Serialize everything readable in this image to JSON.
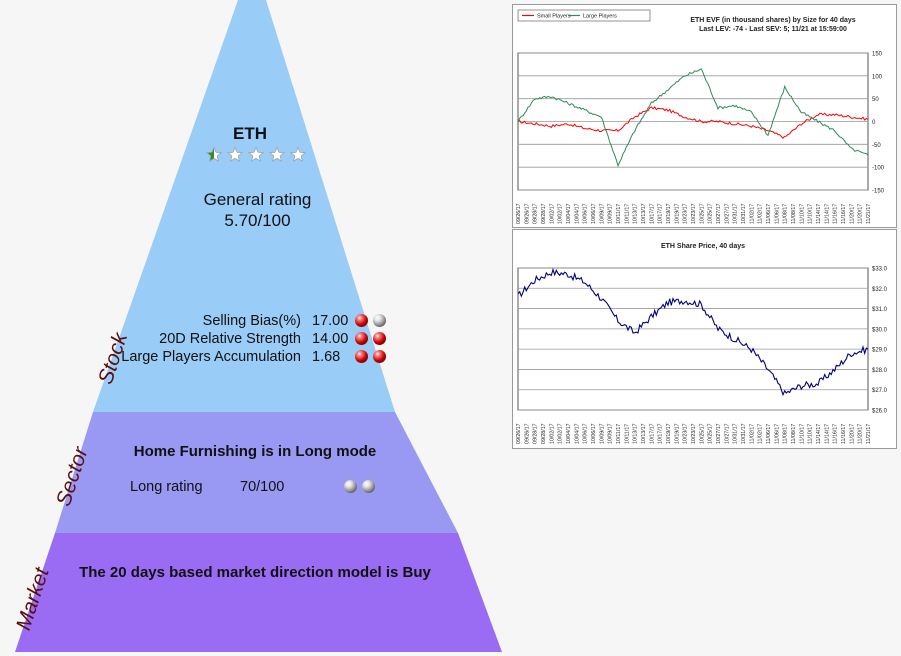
{
  "stock": {
    "ticker": "ETH",
    "star_rating": 0.5,
    "stars_total": 5,
    "general_rating_label": "General rating",
    "general_rating_value": "5.70/100",
    "side_label": "Stock",
    "metrics": [
      {
        "label": "Selling Bias(%)",
        "value": "17.00",
        "balls": [
          "red",
          "gray"
        ]
      },
      {
        "label": "20D Relative Strength",
        "value": "14.00",
        "balls": [
          "red",
          "red"
        ]
      },
      {
        "label": "Large Players Accumulation",
        "value": "1.68",
        "balls": [
          "red",
          "red"
        ]
      }
    ]
  },
  "sector": {
    "side_label": "Sector",
    "title": "Home Furnishing is in Long mode",
    "rating_label": "Long rating",
    "rating_value": "70/100",
    "balls": [
      "gray",
      "gray"
    ]
  },
  "market": {
    "side_label": "Market",
    "text": "The 20 days based market direction model is Buy"
  },
  "colors": {
    "stock_tier": "#99ccf7",
    "sector_tier": "#9999f3",
    "market_tier": "#9a6cf4",
    "side_label": "#5a0f0f",
    "small_players": "#ff0000",
    "large_players": "#2e8b57",
    "price_line": "#000080"
  },
  "chart_data": [
    {
      "type": "line",
      "title": "ETH EVF (in thousand shares) by Size for 40 days",
      "subtitle": "Last LEV: -74 - Last SEV: 5; 11/21 at 15:59:00",
      "legend": [
        "Small Players",
        "Large Players"
      ],
      "legend_position": "top-left",
      "ylim": [
        -150,
        150
      ],
      "yticks": [
        150,
        100,
        50,
        0,
        -50,
        -100,
        -150
      ],
      "grid": true,
      "x": [
        "09/26/17",
        "09/28/17",
        "10/02/17",
        "10/04/17",
        "10/06/17",
        "10/09/17",
        "10/11/17",
        "10/13/17",
        "10/17/17",
        "10/19/17",
        "10/23/17",
        "10/25/17",
        "10/27/17",
        "10/31/17",
        "11/02/17",
        "11/06/17",
        "11/08/17",
        "11/10/17",
        "11/14/17",
        "11/16/17",
        "11/20/17",
        "11/21/17"
      ],
      "series": [
        {
          "name": "Small Players",
          "color": "#ff0000",
          "values": [
            0,
            -5,
            -10,
            -5,
            -15,
            -20,
            -20,
            10,
            30,
            25,
            10,
            0,
            0,
            -5,
            -10,
            -20,
            -35,
            -5,
            15,
            15,
            10,
            5
          ]
        },
        {
          "name": "Large Players",
          "color": "#2e8b57",
          "values": [
            0,
            50,
            55,
            40,
            25,
            10,
            -95,
            -20,
            40,
            70,
            100,
            115,
            30,
            35,
            20,
            -30,
            75,
            20,
            0,
            -20,
            -60,
            -74
          ]
        }
      ]
    },
    {
      "type": "line",
      "title": "ETH Share Price, 40 days",
      "ylim": [
        26.0,
        33.0
      ],
      "yticks": [
        "$33.0",
        "$32.0",
        "$31.0",
        "$30.0",
        "$29.0",
        "$28.0",
        "$27.0",
        "$26.0"
      ],
      "grid": true,
      "x": [
        "09/26/17",
        "09/28/17",
        "10/02/17",
        "10/04/17",
        "10/06/17",
        "10/09/17",
        "10/11/17",
        "10/13/17",
        "10/17/17",
        "10/19/17",
        "10/23/17",
        "10/25/17",
        "10/27/17",
        "10/31/17",
        "11/02/17",
        "11/06/17",
        "11/08/17",
        "11/10/17",
        "11/14/17",
        "11/16/17",
        "11/20/17",
        "11/21/17"
      ],
      "series": [
        {
          "name": "",
          "color": "#000080",
          "values": [
            31.6,
            32.4,
            32.8,
            32.7,
            32.3,
            31.5,
            30.4,
            29.8,
            30.6,
            31.3,
            31.4,
            31.2,
            30.0,
            29.5,
            29.0,
            28.0,
            26.8,
            27.2,
            27.3,
            28.0,
            28.8,
            29.0
          ]
        }
      ]
    }
  ]
}
